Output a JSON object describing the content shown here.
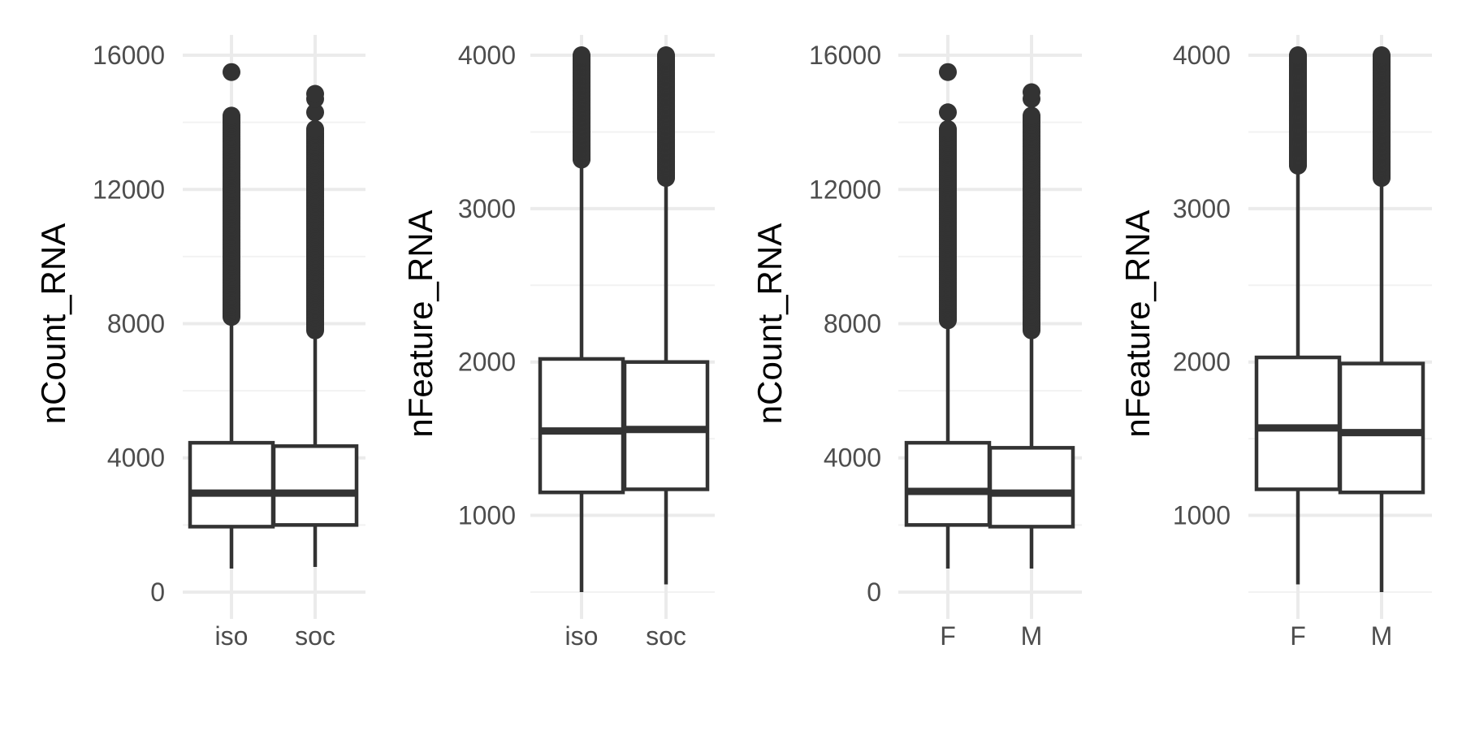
{
  "colors": {
    "ink": "#333333",
    "grid_major": "#ebebeb",
    "grid_minor": "#f2f2f2",
    "tick_text": "#4d4d4d",
    "background": "#ffffff"
  },
  "chart_data": [
    {
      "type": "box",
      "xlabel": "",
      "ylabel": "nCount_RNA",
      "ylim": [
        0,
        16000
      ],
      "yticks": [
        "0",
        "4000",
        "8000",
        "12000",
        "16000"
      ],
      "categories": [
        "iso",
        "soc"
      ],
      "boxes": [
        {
          "category": "iso",
          "min": 700,
          "q1": 1950,
          "median": 2950,
          "q3": 4450,
          "max": 8200,
          "outliers_from": 8200,
          "outliers_to": 14200,
          "extreme_outliers": [
            15500
          ]
        },
        {
          "category": "soc",
          "min": 750,
          "q1": 2000,
          "median": 2950,
          "q3": 4350,
          "max": 7800,
          "outliers_from": 7800,
          "outliers_to": 13800,
          "extreme_outliers": [
            14300,
            14700,
            14850
          ]
        }
      ],
      "grid": true
    },
    {
      "type": "box",
      "xlabel": "",
      "ylabel": "nFeature_RNA",
      "ylim": [
        500,
        4000
      ],
      "yticks": [
        "1000",
        "2000",
        "3000",
        "4000"
      ],
      "categories": [
        "iso",
        "soc"
      ],
      "boxes": [
        {
          "category": "iso",
          "min": 500,
          "q1": 1150,
          "median": 1550,
          "q3": 2020,
          "max": 3320,
          "outliers_from": 3320,
          "outliers_to": 4000,
          "extreme_outliers": []
        },
        {
          "category": "soc",
          "min": 550,
          "q1": 1170,
          "median": 1560,
          "q3": 2000,
          "max": 3200,
          "outliers_from": 3200,
          "outliers_to": 4000,
          "extreme_outliers": []
        }
      ],
      "grid": true
    },
    {
      "type": "box",
      "xlabel": "",
      "ylabel": "nCount_RNA",
      "ylim": [
        0,
        16000
      ],
      "yticks": [
        "0",
        "4000",
        "8000",
        "12000",
        "16000"
      ],
      "categories": [
        "F",
        "M"
      ],
      "boxes": [
        {
          "category": "F",
          "min": 700,
          "q1": 2000,
          "median": 3000,
          "q3": 4450,
          "max": 8100,
          "outliers_from": 8100,
          "outliers_to": 13800,
          "extreme_outliers": [
            14300,
            15500
          ]
        },
        {
          "category": "M",
          "min": 700,
          "q1": 1950,
          "median": 2950,
          "q3": 4300,
          "max": 7800,
          "outliers_from": 7800,
          "outliers_to": 14200,
          "extreme_outliers": [
            14700,
            14900
          ]
        }
      ],
      "grid": true
    },
    {
      "type": "box",
      "xlabel": "",
      "ylabel": "nFeature_RNA",
      "ylim": [
        500,
        4000
      ],
      "yticks": [
        "1000",
        "2000",
        "3000",
        "4000"
      ],
      "categories": [
        "F",
        "M"
      ],
      "boxes": [
        {
          "category": "F",
          "min": 550,
          "q1": 1170,
          "median": 1570,
          "q3": 2030,
          "max": 3280,
          "outliers_from": 3280,
          "outliers_to": 4000,
          "extreme_outliers": []
        },
        {
          "category": "M",
          "min": 500,
          "q1": 1150,
          "median": 1540,
          "q3": 1990,
          "max": 3200,
          "outliers_from": 3200,
          "outliers_to": 4000,
          "extreme_outliers": []
        }
      ],
      "grid": true
    }
  ]
}
